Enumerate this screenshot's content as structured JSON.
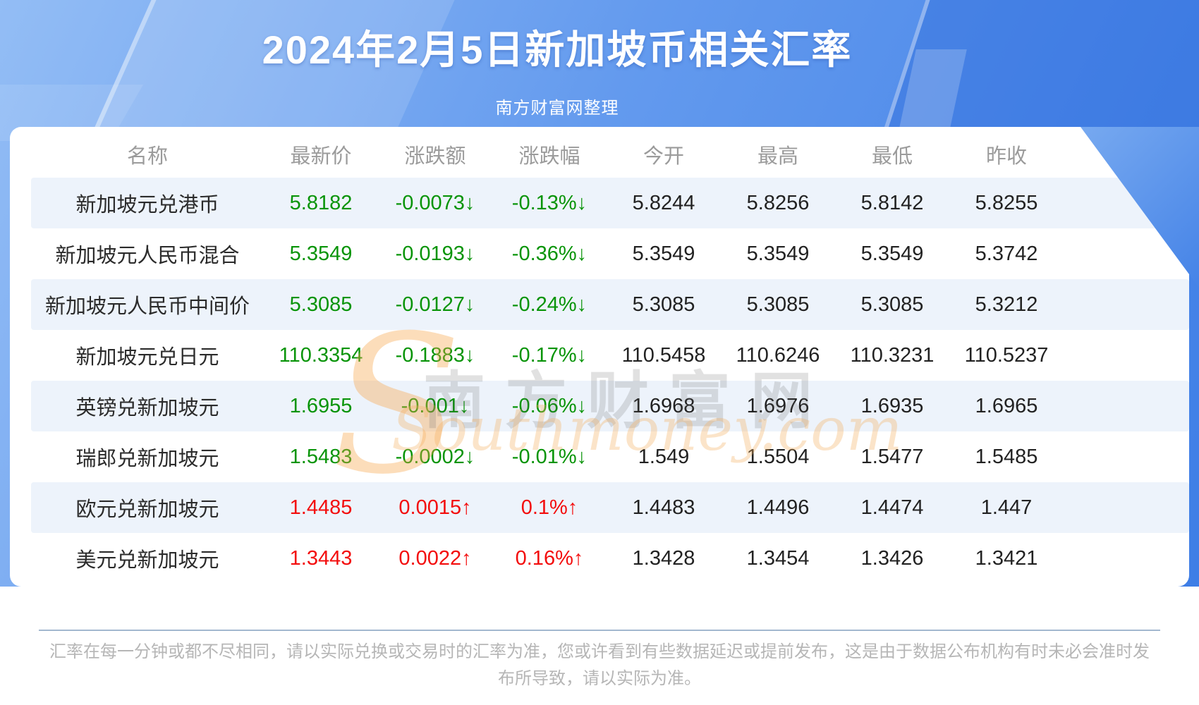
{
  "chart_data": {
    "type": "table",
    "title": "2024年2月5日新加坡币相关汇率",
    "subtitle": "南方财富网整理",
    "columns": [
      "名称",
      "最新价",
      "涨跌额",
      "涨跌幅",
      "今开",
      "最高",
      "最低",
      "昨收"
    ],
    "rows": [
      {
        "name": "新加坡元兑港币",
        "latest": "5.8182",
        "change": "-0.0073↓",
        "change_pct": "-0.13%↓",
        "open": "5.8244",
        "high": "5.8256",
        "low": "5.8142",
        "prev_close": "5.8255",
        "direction": "down"
      },
      {
        "name": "新加坡元人民币混合",
        "latest": "5.3549",
        "change": "-0.0193↓",
        "change_pct": "-0.36%↓",
        "open": "5.3549",
        "high": "5.3549",
        "low": "5.3549",
        "prev_close": "5.3742",
        "direction": "down"
      },
      {
        "name": "新加坡元人民币中间价",
        "latest": "5.3085",
        "change": "-0.0127↓",
        "change_pct": "-0.24%↓",
        "open": "5.3085",
        "high": "5.3085",
        "low": "5.3085",
        "prev_close": "5.3212",
        "direction": "down"
      },
      {
        "name": "新加坡元兑日元",
        "latest": "110.3354",
        "change": "-0.1883↓",
        "change_pct": "-0.17%↓",
        "open": "110.5458",
        "high": "110.6246",
        "low": "110.3231",
        "prev_close": "110.5237",
        "direction": "down"
      },
      {
        "name": "英镑兑新加坡元",
        "latest": "1.6955",
        "change": "-0.001↓",
        "change_pct": "-0.06%↓",
        "open": "1.6968",
        "high": "1.6976",
        "low": "1.6935",
        "prev_close": "1.6965",
        "direction": "down"
      },
      {
        "name": "瑞郎兑新加坡元",
        "latest": "1.5483",
        "change": "-0.0002↓",
        "change_pct": "-0.01%↓",
        "open": "1.549",
        "high": "1.5504",
        "low": "1.5477",
        "prev_close": "1.5485",
        "direction": "down"
      },
      {
        "name": "欧元兑新加坡元",
        "latest": "1.4485",
        "change": "0.0015↑",
        "change_pct": "0.1%↑",
        "open": "1.4483",
        "high": "1.4496",
        "low": "1.4474",
        "prev_close": "1.447",
        "direction": "up"
      },
      {
        "name": "美元兑新加坡元",
        "latest": "1.3443",
        "change": "0.0022↑",
        "change_pct": "0.16%↑",
        "open": "1.3428",
        "high": "1.3454",
        "low": "1.3426",
        "prev_close": "1.3421",
        "direction": "up"
      }
    ],
    "note": "汇率在每一分钟或都不尽相同，请以实际兑换或交易时的汇率为准，您或许看到有些数据延迟或提前发布，这是由于数据公布机构有时未必会准时发布所导致，请以实际为准。",
    "colors": {
      "up": "#f30d0d",
      "down": "#089408",
      "row_alt_bg": "#edf3fb",
      "hero_blue": "#3e7ee6"
    }
  },
  "watermark": {
    "cn": "南方财富网",
    "en": "Southmoney.com",
    "swoosh": "S"
  }
}
